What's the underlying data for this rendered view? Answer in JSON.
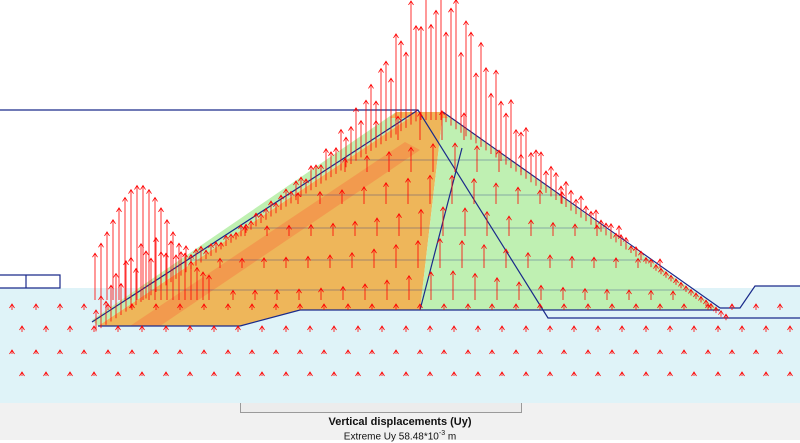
{
  "window": {
    "title": "Vertical displacements (Uy)"
  },
  "caption": {
    "title": "Vertical displacements (Uy)",
    "extreme_prefix": "Extreme Uy 58.48*10",
    "extreme_exponent": "-3",
    "extreme_unit": " m"
  },
  "colors": {
    "background": "#ffffff",
    "soil": "#dff3f8",
    "core_zone": "#eeb65a",
    "shell_zone": "#bff0b2",
    "filter_zone": "#f29a4e",
    "outline": "#1a2a8a",
    "arrow": "#ff0000"
  },
  "icons": {
    "displacement_arrow": "red-up-arrow-icon"
  }
}
